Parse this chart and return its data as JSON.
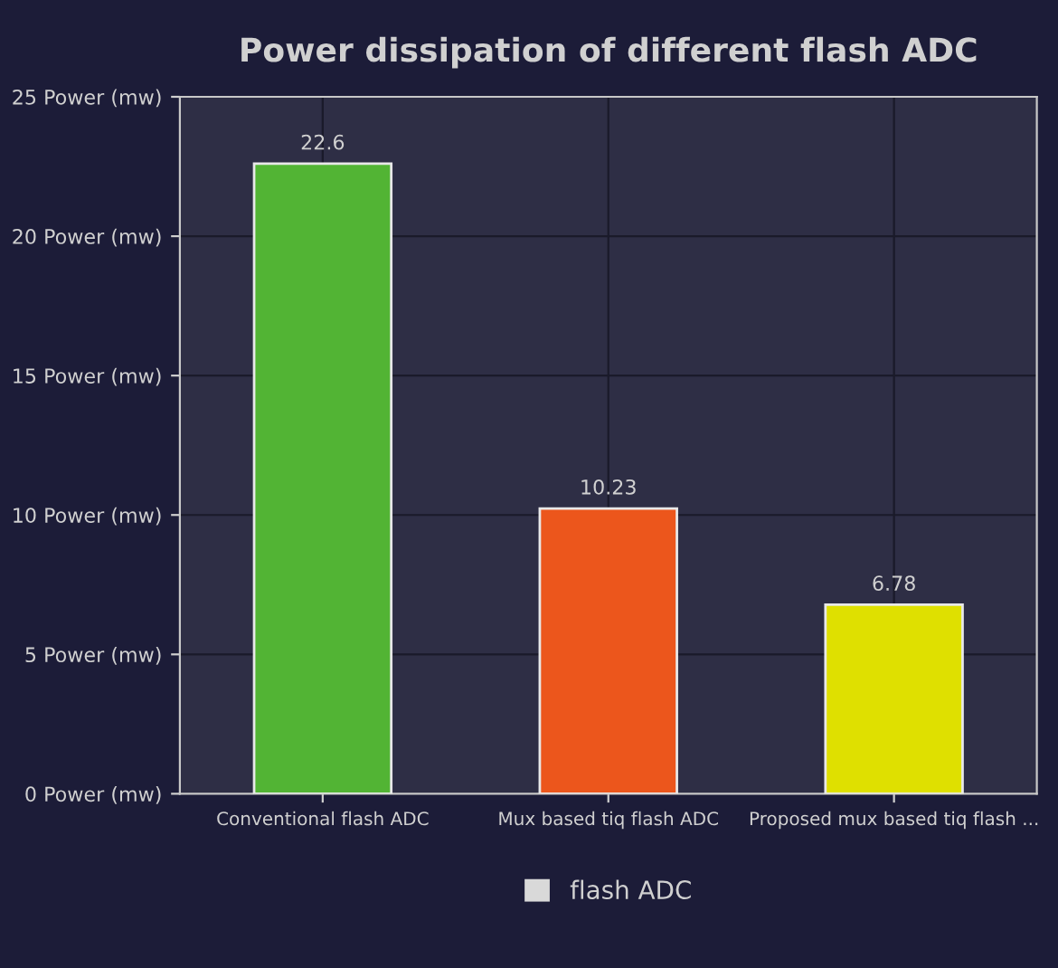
{
  "chart_data": {
    "type": "bar",
    "title": "Power dissipation of different flash ADC",
    "categories": [
      "Conventional flash ADC",
      "Mux based tiq flash ADC",
      "Proposed mux based tiq flash ..."
    ],
    "series": [
      {
        "name": "flash ADC",
        "color": "#d9d9d9",
        "colors": [
          "#52b434",
          "#ec561c",
          "#dfe000"
        ],
        "values": [
          22.6,
          10.23,
          6.78
        ]
      }
    ],
    "ylim": [
      0,
      25
    ],
    "yticks": [
      {
        "value": 0,
        "label": "0 Power (mw)"
      },
      {
        "value": 5,
        "label": "5 Power (mw)"
      },
      {
        "value": 10,
        "label": "10 Power (mw)"
      },
      {
        "value": 15,
        "label": "15 Power (mw)"
      },
      {
        "value": 20,
        "label": "20 Power (mw)"
      },
      {
        "value": 25,
        "label": "25 Power (mw)"
      }
    ],
    "grid": true,
    "legend": "bottom",
    "data_labels": true
  }
}
